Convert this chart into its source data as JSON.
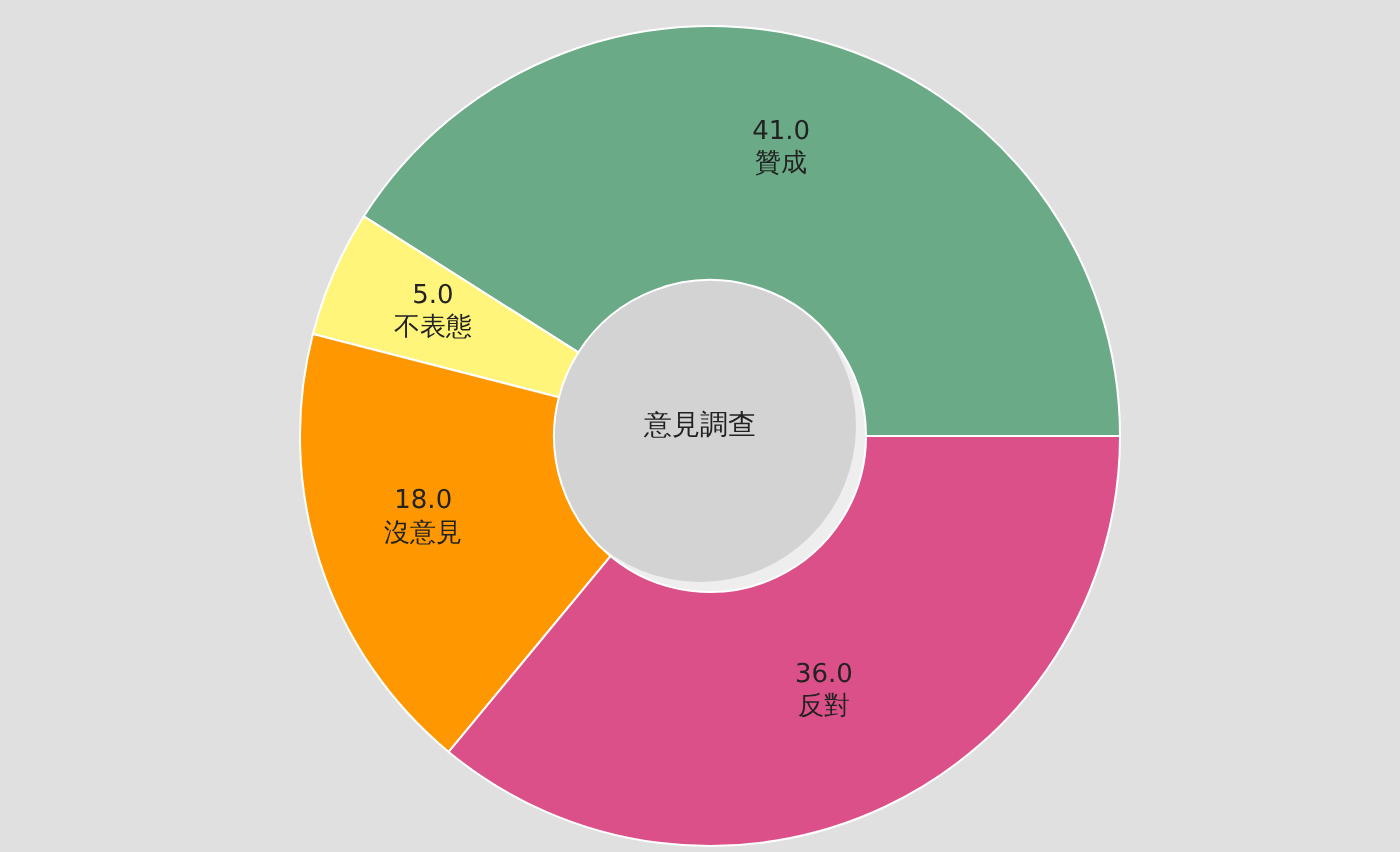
{
  "chart_data": {
    "type": "donut",
    "title": "意見調查",
    "categories": [
      "贊成",
      "不表態",
      "沒意見",
      "反對"
    ],
    "values": [
      41,
      5,
      18,
      36
    ],
    "value_labels": [
      "41.0",
      "5.0",
      "18.0",
      "36.0"
    ],
    "colors": [
      "#6aaa87",
      "#fff57a",
      "#ff9800",
      "#dc5089"
    ],
    "legend": false
  }
}
